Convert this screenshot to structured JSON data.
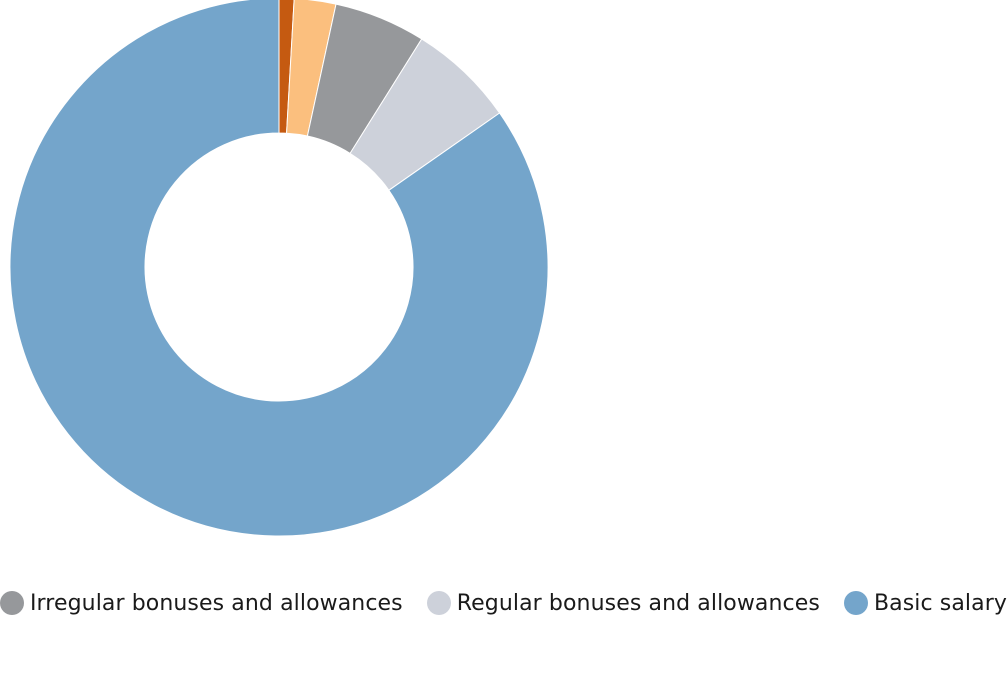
{
  "chart_data": {
    "type": "pie",
    "variant": "donut",
    "title": "",
    "series": [
      {
        "name": "",
        "value": 0.9,
        "color": "#C55A11"
      },
      {
        "name": "",
        "value": 2.5,
        "color": "#FBBF7E"
      },
      {
        "name": "",
        "value": 5.5,
        "color": "#96989B"
      },
      {
        "name": "Regular bonuses and allowances",
        "value": 6.4,
        "color": "#CDD1DA"
      },
      {
        "name": "Basic salary",
        "value": 84.7,
        "color": "#74A5CB"
      }
    ],
    "legend": {
      "position": "bottom",
      "items": [
        {
          "label": "Irregular bonuses and allowances",
          "color": "#96989B"
        },
        {
          "label": "Regular bonuses and allowances",
          "color": "#CDD1DA"
        },
        {
          "label": "Basic salary",
          "color": "#74A5CB"
        }
      ]
    }
  }
}
